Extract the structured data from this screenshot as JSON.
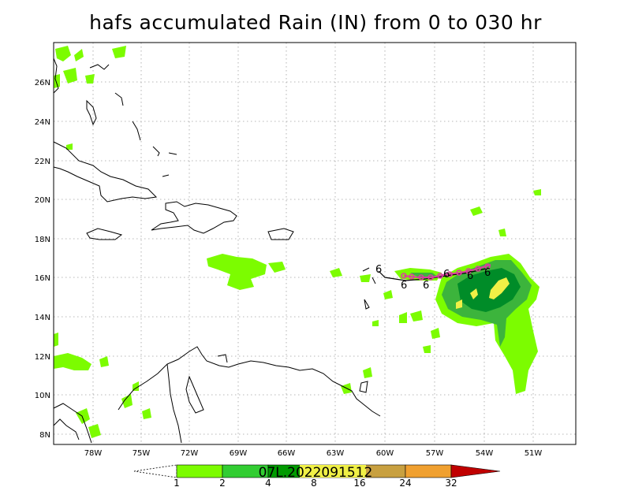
{
  "title": "hafs accumulated Rain (IN) from 0 to 030 hr",
  "map": {
    "lon_range": [
      -80.5,
      -48.0
    ],
    "lat_range": [
      7.5,
      27.9
    ],
    "x_ticks": [
      "78W",
      "75W",
      "72W",
      "69W",
      "66W",
      "63W",
      "60W",
      "57W",
      "54W",
      "51W"
    ],
    "y_ticks": [
      "26N",
      "24N",
      "22N",
      "20N",
      "18N",
      "16N",
      "14N",
      "12N",
      "10N",
      "8N"
    ],
    "grid": "dotted"
  },
  "colorbar": {
    "levels": [
      "1",
      "2",
      "4",
      "8",
      "16",
      "24",
      "32"
    ],
    "colors": [
      "#ffffff",
      "#7cfc00",
      "#32cd32",
      "#009a00",
      "#c8a040",
      "#f0a030",
      "#c00000"
    ]
  },
  "storm_label": "07L.2022091512",
  "track_symbol": "6",
  "colors": {
    "light_green": "#7cfc00",
    "mid_green": "#3cb43c",
    "dark_green": "#008c28",
    "yellow": "#f0f046",
    "track_magenta": "#dc3ca0"
  }
}
